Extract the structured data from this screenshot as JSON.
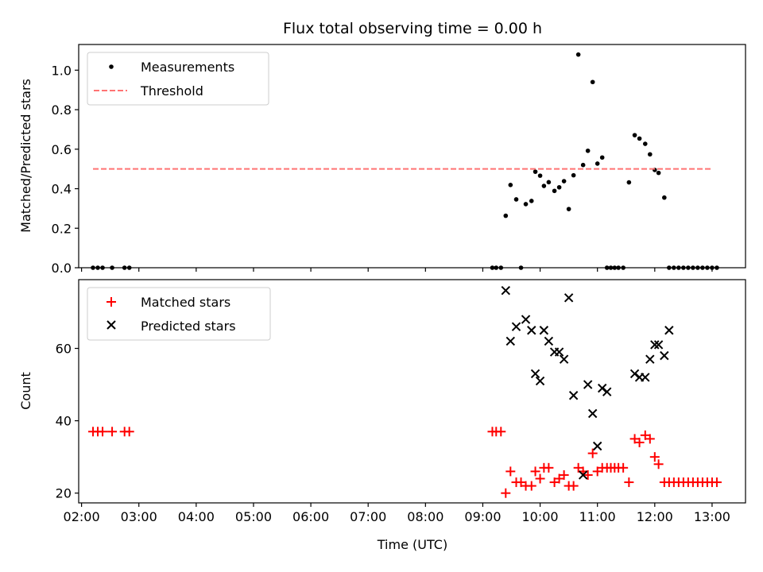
{
  "chart_data": {
    "title": "Flux total observing time = 0.00 h",
    "xlabel": "Time (UTC)",
    "x_ticks": [
      "02:00",
      "03:00",
      "04:00",
      "05:00",
      "06:00",
      "07:00",
      "08:00",
      "09:00",
      "10:00",
      "11:00",
      "12:00",
      "13:00"
    ],
    "x_range": [
      "01:57",
      "13:35"
    ],
    "panels": [
      {
        "type": "scatter",
        "ylabel": "Matched/Predicted stars",
        "ylim": [
          0,
          1.13
        ],
        "y_ticks": [
          "0.0",
          "0.2",
          "0.4",
          "0.6",
          "0.8",
          "1.0"
        ],
        "legend": {
          "placement": "upper-left",
          "entries": [
            "Measurements",
            "Threshold"
          ]
        },
        "series": [
          {
            "name": "Measurements",
            "marker": "dot",
            "color": "#000000",
            "points": [
              [
                "02:12",
                0
              ],
              [
                "02:17",
                0
              ],
              [
                "02:22",
                0
              ],
              [
                "02:32",
                0
              ],
              [
                "02:45",
                0
              ],
              [
                "02:50",
                0
              ],
              [
                "09:10",
                0
              ],
              [
                "09:14",
                0
              ],
              [
                "09:19",
                0
              ],
              [
                "09:24",
                0.263
              ],
              [
                "09:29",
                0.419
              ],
              [
                "09:35",
                0.346
              ],
              [
                "09:40",
                0.0
              ],
              [
                "09:45",
                0.322
              ],
              [
                "09:51",
                0.338
              ],
              [
                "09:55",
                0.486
              ],
              [
                "10:00",
                0.466
              ],
              [
                "10:04",
                0.414
              ],
              [
                "10:09",
                0.433
              ],
              [
                "10:15",
                0.389
              ],
              [
                "10:20",
                0.407
              ],
              [
                "10:25",
                0.438
              ],
              [
                "10:30",
                0.297
              ],
              [
                "10:35",
                0.468
              ],
              [
                "10:40",
                1.079
              ],
              [
                "10:45",
                0.52
              ],
              [
                "10:50",
                0.592
              ],
              [
                "10:55",
                0.94
              ],
              [
                "11:00",
                0.527
              ],
              [
                "11:05",
                0.558
              ],
              [
                "11:10",
                0
              ],
              [
                "11:14",
                0
              ],
              [
                "11:18",
                0
              ],
              [
                "11:22",
                0
              ],
              [
                "11:27",
                0
              ],
              [
                "11:33",
                0.432
              ],
              [
                "11:39",
                0.671
              ],
              [
                "11:44",
                0.654
              ],
              [
                "11:50",
                0.627
              ],
              [
                "11:55",
                0.574
              ],
              [
                "12:00",
                0.495
              ],
              [
                "12:04",
                0.48
              ],
              [
                "12:10",
                0.355
              ],
              [
                "12:15",
                0
              ],
              [
                "12:20",
                0
              ],
              [
                "12:25",
                0
              ],
              [
                "12:30",
                0
              ],
              [
                "12:35",
                0
              ],
              [
                "12:40",
                0
              ],
              [
                "12:45",
                0
              ],
              [
                "12:50",
                0
              ],
              [
                "12:55",
                0
              ],
              [
                "13:00",
                0
              ],
              [
                "13:05",
                0
              ]
            ]
          },
          {
            "name": "Threshold",
            "style": "dashed",
            "color": "#ff7373",
            "x": [
              "02:12",
              "13:00"
            ],
            "y": [
              0.5,
              0.5
            ]
          }
        ]
      },
      {
        "type": "scatter",
        "ylabel": "Count",
        "ylim": [
          17.3,
          79.0
        ],
        "y_ticks": [
          "20",
          "40",
          "60"
        ],
        "legend": {
          "placement": "upper-left",
          "entries": [
            "Matched stars",
            "Predicted stars"
          ]
        },
        "series": [
          {
            "name": "Matched stars",
            "marker": "plus",
            "color": "#ff0000",
            "points": [
              [
                "02:12",
                37
              ],
              [
                "02:17",
                37
              ],
              [
                "02:22",
                37
              ],
              [
                "02:32",
                37
              ],
              [
                "02:45",
                37
              ],
              [
                "02:50",
                37
              ],
              [
                "09:10",
                37
              ],
              [
                "09:14",
                37
              ],
              [
                "09:19",
                37
              ],
              [
                "09:24",
                20
              ],
              [
                "09:29",
                26
              ],
              [
                "09:35",
                23
              ],
              [
                "09:40",
                23
              ],
              [
                "09:45",
                22
              ],
              [
                "09:51",
                22
              ],
              [
                "09:55",
                26
              ],
              [
                "10:00",
                24
              ],
              [
                "10:04",
                27
              ],
              [
                "10:09",
                27
              ],
              [
                "10:15",
                23
              ],
              [
                "10:20",
                24
              ],
              [
                "10:25",
                25
              ],
              [
                "10:30",
                22
              ],
              [
                "10:35",
                22
              ],
              [
                "10:40",
                27
              ],
              [
                "10:45",
                26
              ],
              [
                "10:50",
                25
              ],
              [
                "10:55",
                31
              ],
              [
                "11:00",
                26
              ],
              [
                "11:05",
                27
              ],
              [
                "11:10",
                27
              ],
              [
                "11:14",
                27
              ],
              [
                "11:18",
                27
              ],
              [
                "11:22",
                27
              ],
              [
                "11:27",
                27
              ],
              [
                "11:33",
                23
              ],
              [
                "11:39",
                35
              ],
              [
                "11:44",
                34
              ],
              [
                "11:50",
                36
              ],
              [
                "11:55",
                35
              ],
              [
                "12:00",
                30
              ],
              [
                "12:04",
                28
              ],
              [
                "12:10",
                23
              ],
              [
                "12:15",
                23
              ],
              [
                "12:20",
                23
              ],
              [
                "12:25",
                23
              ],
              [
                "12:30",
                23
              ],
              [
                "12:35",
                23
              ],
              [
                "12:40",
                23
              ],
              [
                "12:45",
                23
              ],
              [
                "12:50",
                23
              ],
              [
                "12:55",
                23
              ],
              [
                "13:00",
                23
              ],
              [
                "13:05",
                23
              ]
            ]
          },
          {
            "name": "Predicted stars",
            "marker": "x",
            "color": "#000000",
            "points": [
              [
                "09:24",
                76
              ],
              [
                "09:29",
                62
              ],
              [
                "09:35",
                66
              ],
              [
                "09:45",
                68
              ],
              [
                "09:51",
                65
              ],
              [
                "09:55",
                53
              ],
              [
                "10:00",
                51
              ],
              [
                "10:04",
                65
              ],
              [
                "10:09",
                62
              ],
              [
                "10:15",
                59
              ],
              [
                "10:20",
                59
              ],
              [
                "10:25",
                57
              ],
              [
                "10:30",
                74
              ],
              [
                "10:35",
                47
              ],
              [
                "10:45",
                25
              ],
              [
                "10:50",
                50
              ],
              [
                "10:55",
                42
              ],
              [
                "11:00",
                33
              ],
              [
                "11:05",
                49
              ],
              [
                "11:10",
                48
              ],
              [
                "11:39",
                53
              ],
              [
                "11:44",
                52
              ],
              [
                "11:50",
                52
              ],
              [
                "11:55",
                57
              ],
              [
                "12:00",
                61
              ],
              [
                "12:04",
                61
              ],
              [
                "12:10",
                58
              ],
              [
                "12:15",
                65
              ]
            ]
          }
        ]
      }
    ]
  }
}
